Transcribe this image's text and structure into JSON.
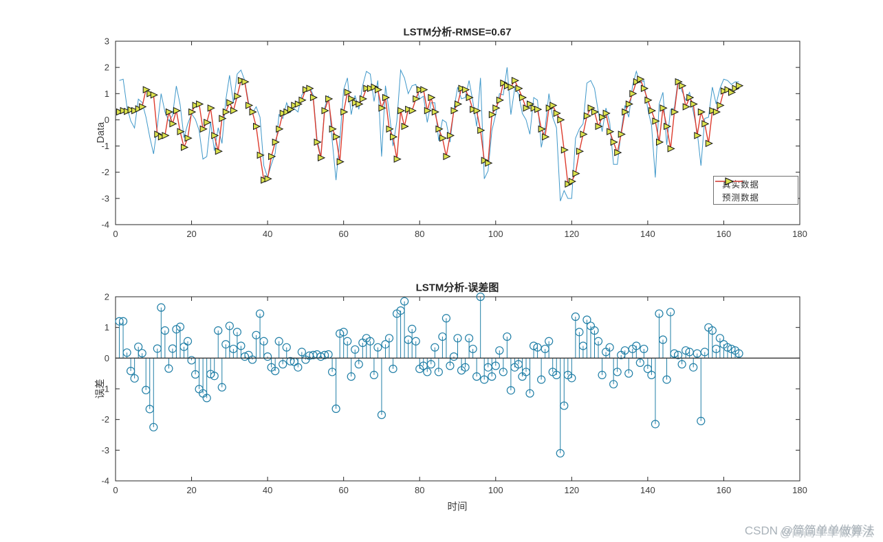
{
  "page": {
    "background": "#ffffff"
  },
  "top_chart": {
    "title": "LSTM分析-RMSE=0.67",
    "ylabel": "Data",
    "xlabel": "",
    "xticks": [
      0,
      20,
      40,
      60,
      80,
      100,
      120,
      140,
      160,
      180
    ],
    "yticks": [
      3,
      2,
      1,
      0,
      -1,
      -2,
      -3,
      -4
    ]
  },
  "bottom_chart": {
    "title": "LSTM分析-误差图",
    "ylabel": "误差",
    "xlabel": "时间",
    "xticks": [
      0,
      20,
      40,
      60,
      80,
      100,
      120,
      140,
      160,
      180
    ],
    "yticks": [
      2,
      1,
      0,
      -1,
      -2,
      -3,
      -4
    ]
  },
  "legend": {
    "items": [
      {
        "label": "真实数据",
        "color": "#3e97c9",
        "marker": "none"
      },
      {
        "label": "预测数据",
        "color": "#dd3a2c",
        "marker": "right-triangle",
        "marker_fill": "#dce24e",
        "marker_edge": "#141414"
      }
    ]
  },
  "watermark": {
    "text": "CSDN @简简单单做算法",
    "ghost_text": "@简简单单做算法",
    "color": "#a9b2b9"
  },
  "colors": {
    "axis": "#262626",
    "tick_label": "#3c3c3c",
    "real_line": "#3e97c9",
    "predicted_line": "#dd3a2c",
    "marker_fill": "#dce24e",
    "marker_edge": "#141414",
    "stem": "#1f7ea6",
    "stem_baseline": "#333333"
  },
  "chart_data": [
    {
      "type": "line",
      "title": "LSTM分析-RMSE=0.67",
      "rmse": 0.67,
      "xlabel": "",
      "ylabel": "Data",
      "xlim": [
        0,
        180
      ],
      "ylim": [
        -4,
        3
      ],
      "grid": false,
      "legend_position": "southeast",
      "x_start": 1,
      "x_step": 1,
      "series": [
        {
          "name": "真实数据",
          "color": "#3e97c9",
          "marker": "none",
          "values": [
            1.5,
            1.55,
            0.5,
            -0.04,
            -0.31,
            0.79,
            0.66,
            0.11,
            -0.66,
            -1.3,
            -0.24,
            1.0,
            0.3,
            -0.04,
            0.16,
            1.29,
            0.57,
            -0.68,
            -0.15,
            0.23,
            0.02,
            -0.41,
            -1.5,
            -1.4,
            -0.07,
            -1.18,
            -0.3,
            -0.9,
            0.75,
            1.7,
            0.65,
            1.75,
            1.9,
            1.5,
            0.65,
            0.25,
            0.5,
            0.1,
            -1.75,
            -2.2,
            -1.7,
            -1.27,
            0.2,
            0.05,
            0.65,
            0.3,
            0.43,
            0.3,
            0.95,
            1.1,
            1.28,
            0.95,
            -0.73,
            -1.4,
            0.45,
            0.92,
            -0.8,
            -2.3,
            -0.8,
            1.15,
            1.6,
            0.2,
            0.93,
            0.4,
            1.3,
            1.85,
            1.75,
            0.7,
            1.5,
            -1.4,
            1.3,
            0.3,
            -1.0,
            -0.05,
            1.9,
            1.6,
            1.0,
            1.3,
            1.35,
            0.8,
            0.9,
            -0.1,
            0.65,
            0.65,
            -0.8,
            0.0,
            -0.1,
            -0.85,
            0.4,
            1.25,
            0.8,
            0.85,
            1.5,
            0.7,
            -0.25,
            1.6,
            -2.25,
            -1.95,
            -0.4,
            0.2,
            1.0,
            0.95,
            2.0,
            0.2,
            1.2,
            1.0,
            0.25,
            0.0,
            -0.55,
            0.85,
            0.75,
            -1.05,
            -0.35,
            1.0,
            0.1,
            -0.3,
            -3.1,
            -2.7,
            -3.0,
            -3.0,
            -0.7,
            -0.35,
            -0.15,
            1.4,
            1.5,
            1.2,
            0.3,
            -0.45,
            0.45,
            -0.1,
            -1.7,
            -1.7,
            -0.45,
            0.55,
            0.1,
            1.3,
            1.85,
            1.4,
            1.5,
            0.4,
            -0.2,
            -2.2,
            0.6,
            1.05,
            -0.95,
            0.4,
            0.45,
            1.55,
            1.1,
            0.75,
            1.05,
            0.3,
            -0.45,
            -1.75,
            0.05,
            0.1,
            1.25,
            0.6,
            1.2,
            1.55,
            1.5,
            1.35,
            1.45,
            1.45
          ]
        },
        {
          "name": "预测数据",
          "color": "#dd3a2c",
          "marker": "right-triangle",
          "marker_fill": "#dce24e",
          "values": [
            0.3,
            0.35,
            0.32,
            0.38,
            0.35,
            0.42,
            0.5,
            1.15,
            1.0,
            0.95,
            -0.55,
            -0.65,
            -0.6,
            0.3,
            -0.15,
            0.35,
            -0.45,
            -1.05,
            -0.7,
            0.3,
            0.55,
            0.6,
            -0.35,
            -0.1,
            0.45,
            -0.6,
            -1.2,
            0.05,
            0.3,
            0.65,
            0.35,
            0.9,
            1.5,
            1.45,
            0.55,
            0.3,
            -0.25,
            -1.35,
            -2.3,
            -2.25,
            -1.4,
            -0.85,
            -0.35,
            0.25,
            0.3,
            0.4,
            0.55,
            0.6,
            0.75,
            1.15,
            1.2,
            0.85,
            -0.85,
            -1.45,
            0.35,
            0.8,
            -0.35,
            -0.65,
            -1.6,
            0.3,
            1.05,
            0.8,
            0.65,
            0.6,
            0.8,
            1.2,
            1.2,
            1.25,
            1.15,
            0.45,
            0.85,
            -0.35,
            -0.65,
            -1.5,
            0.35,
            -0.25,
            0.4,
            0.35,
            0.8,
            1.15,
            1.15,
            0.35,
            0.85,
            0.3,
            -0.35,
            -0.7,
            -1.4,
            -0.6,
            0.35,
            0.6,
            1.2,
            1.15,
            0.85,
            0.4,
            0.35,
            -0.4,
            -1.55,
            -1.65,
            0.2,
            0.45,
            0.75,
            1.4,
            1.3,
            1.25,
            1.5,
            1.2,
            0.85,
            0.45,
            0.6,
            0.45,
            0.4,
            -0.35,
            -0.65,
            0.45,
            0.55,
            0.25,
            0.0,
            -1.15,
            -2.45,
            -2.35,
            -2.05,
            -1.2,
            -0.55,
            0.15,
            0.45,
            0.3,
            -0.25,
            0.1,
            0.25,
            -0.45,
            -0.85,
            -1.25,
            -0.55,
            0.3,
            0.6,
            1.0,
            1.45,
            1.55,
            1.2,
            0.75,
            0.35,
            -0.05,
            -0.85,
            0.45,
            -0.25,
            -1.1,
            0.3,
            1.45,
            1.3,
            0.5,
            0.85,
            0.6,
            -0.6,
            0.3,
            -0.15,
            -0.9,
            0.35,
            0.3,
            0.55,
            1.1,
            1.15,
            1.05,
            1.2,
            1.3
          ]
        }
      ]
    },
    {
      "type": "stem",
      "title": "LSTM分析-误差图",
      "xlabel": "时间",
      "ylabel": "误差",
      "xlim": [
        0,
        180
      ],
      "ylim": [
        -4,
        2
      ],
      "grid": false,
      "x_start": 1,
      "x_step": 1,
      "values": [
        1.2,
        1.2,
        0.18,
        -0.42,
        -0.66,
        0.37,
        0.16,
        -1.04,
        -1.66,
        -2.25,
        0.31,
        1.65,
        0.9,
        -0.34,
        0.31,
        0.94,
        1.02,
        0.37,
        0.55,
        -0.07,
        -0.53,
        -1.01,
        -1.15,
        -1.3,
        -0.52,
        -0.58,
        0.9,
        -0.95,
        0.45,
        1.05,
        0.3,
        0.85,
        0.4,
        0.05,
        0.1,
        -0.05,
        0.75,
        1.45,
        0.55,
        0.05,
        -0.3,
        -0.42,
        0.55,
        -0.2,
        0.35,
        -0.1,
        -0.12,
        -0.3,
        0.2,
        -0.05,
        0.08,
        0.1,
        0.12,
        0.05,
        0.1,
        0.12,
        -0.45,
        -1.65,
        0.8,
        0.85,
        0.55,
        -0.6,
        0.28,
        -0.2,
        0.5,
        0.65,
        0.55,
        -0.55,
        0.35,
        -1.85,
        0.45,
        0.65,
        -0.35,
        1.45,
        1.55,
        1.85,
        0.6,
        0.95,
        0.55,
        -0.35,
        -0.25,
        -0.45,
        -0.2,
        0.35,
        -0.45,
        0.7,
        1.3,
        -0.25,
        0.05,
        0.65,
        -0.4,
        -0.3,
        0.65,
        0.3,
        -0.6,
        2.0,
        -0.7,
        -0.3,
        -0.6,
        -0.25,
        0.25,
        -0.45,
        0.7,
        -1.05,
        -0.3,
        -0.2,
        -0.6,
        -0.45,
        -1.15,
        0.4,
        0.35,
        -0.7,
        0.3,
        0.55,
        -0.45,
        -0.55,
        -3.1,
        -1.55,
        -0.55,
        -0.65,
        1.35,
        0.85,
        0.4,
        1.25,
        1.05,
        0.9,
        0.55,
        -0.55,
        0.2,
        0.35,
        -0.85,
        -0.45,
        0.1,
        0.25,
        -0.5,
        0.3,
        0.4,
        -0.15,
        0.3,
        -0.35,
        -0.55,
        -2.15,
        1.45,
        0.6,
        -0.7,
        1.5,
        0.15,
        0.1,
        -0.2,
        0.25,
        0.2,
        -0.3,
        0.15,
        -2.05,
        0.2,
        1.0,
        0.9,
        0.3,
        0.65,
        0.45,
        0.35,
        0.3,
        0.25,
        0.15
      ]
    }
  ]
}
